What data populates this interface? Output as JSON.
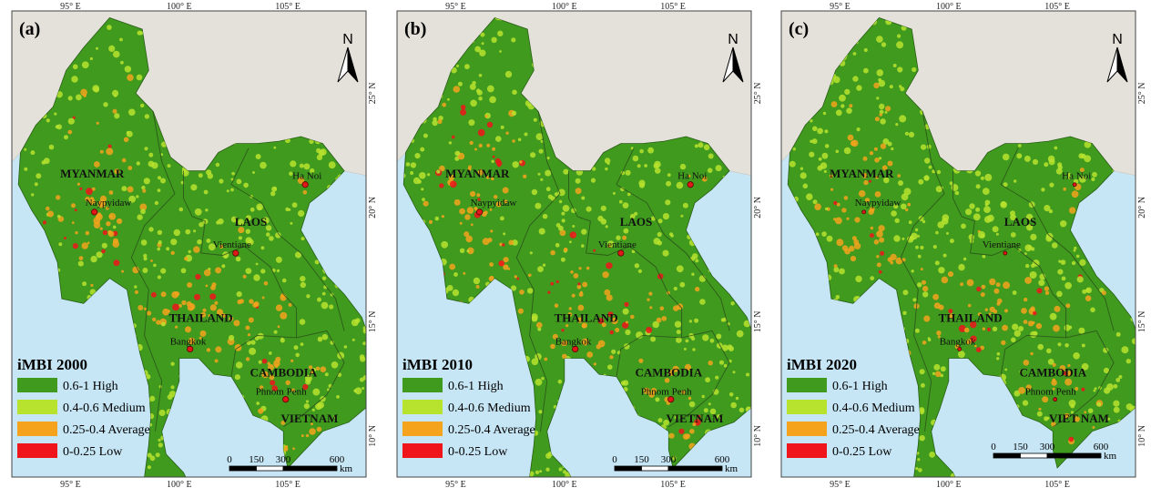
{
  "colors": {
    "sea": "#c6e6f6",
    "land_other": "#e4e1da",
    "high": "#3f9a1e",
    "medium": "#b7e32e",
    "average": "#f5a31c",
    "low": "#f0141b",
    "city_dot": "#e01818"
  },
  "axes": {
    "lon_labels": [
      "95° E",
      "100° E",
      "105° E"
    ],
    "lat_labels": [
      "25° N",
      "20° N",
      "15° N",
      "10° N"
    ]
  },
  "north_arrow": {
    "letter": "N"
  },
  "countries": [
    "MYANMAR",
    "LAOS",
    "THAILAND",
    "CAMBODIA",
    "VIETNAM"
  ],
  "cities": [
    "Ha Noi",
    "Naypyidaw",
    "Vientiane",
    "Bangkok",
    "Phnom Penh"
  ],
  "legend": {
    "items": [
      {
        "label": "0.6-1 High",
        "color_key": "high"
      },
      {
        "label": "0.4-0.6 Medium",
        "color_key": "medium"
      },
      {
        "label": "0.25-0.4 Average",
        "color_key": "average"
      },
      {
        "label": "0-0.25 Low",
        "color_key": "low"
      }
    ]
  },
  "scale_bar": {
    "ticks": [
      "0",
      "150",
      "300",
      "600"
    ],
    "unit": "km"
  },
  "panels": [
    {
      "tag": "(a)",
      "title": "iMBI 2000",
      "country_labels": [
        "MYANMAR",
        "LAOS",
        "THAILAND",
        "CAMBODIA",
        "VIETNAM"
      ]
    },
    {
      "tag": "(b)",
      "title": "iMBI 2010",
      "country_labels": [
        "MYANMAR",
        "LAOS",
        "THAILAND",
        "CAMBODIA",
        "VIETNAM"
      ]
    },
    {
      "tag": "(c)",
      "title": "iMBI 2020",
      "country_labels": [
        "MYANMAR",
        "LAOS",
        "THAILAND",
        "CAMBODIA",
        "VIET NAM"
      ]
    }
  ]
}
